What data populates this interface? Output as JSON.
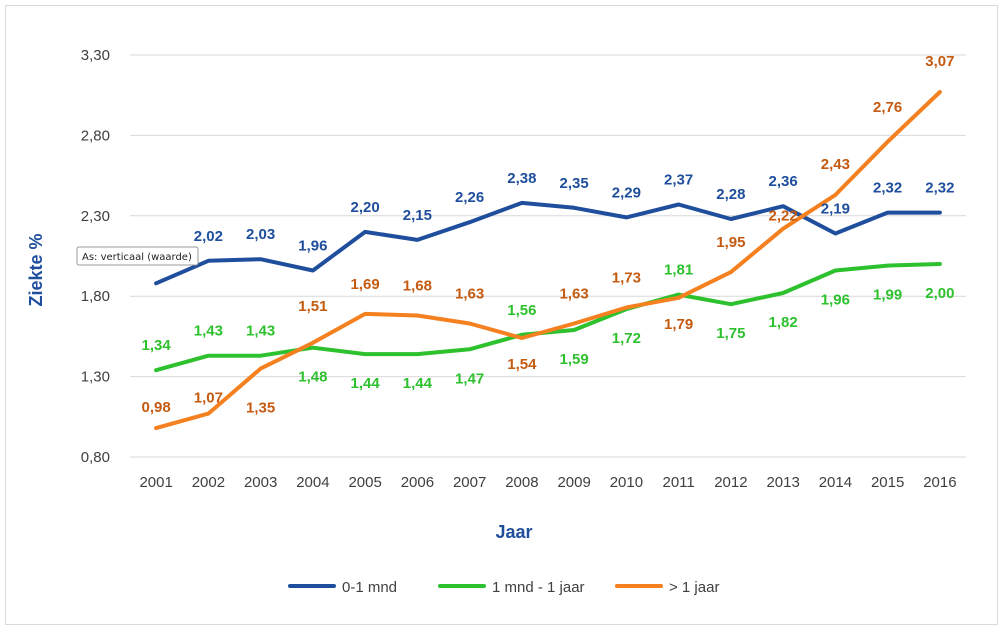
{
  "chart_data": {
    "type": "line",
    "xlabel": "Jaar",
    "ylabel": "Ziekte %",
    "ylim": [
      0.8,
      3.3
    ],
    "yticks": [
      "0,80",
      "1,30",
      "1,80",
      "2,30",
      "2,80",
      "3,30"
    ],
    "ytick_values": [
      0.8,
      1.3,
      1.8,
      2.3,
      2.8,
      3.3
    ],
    "categories": [
      "2001",
      "2002",
      "2003",
      "2004",
      "2005",
      "2006",
      "2007",
      "2008",
      "2009",
      "2010",
      "2011",
      "2012",
      "2013",
      "2014",
      "2015",
      "2016"
    ],
    "series": [
      {
        "name": "0-1 mnd",
        "color": "#1f4e9c",
        "values": [
          1.88,
          2.02,
          2.03,
          1.96,
          2.2,
          2.15,
          2.26,
          2.38,
          2.35,
          2.29,
          2.37,
          2.28,
          2.36,
          2.19,
          2.32,
          2.32
        ],
        "labels": [
          "",
          "2,02",
          "2,03",
          "1,96",
          "2,20",
          "2,15",
          "2,26",
          "2,38",
          "2,35",
          "2,29",
          "2,37",
          "2,28",
          "2,36",
          "2,19",
          "2,32",
          "2,32"
        ]
      },
      {
        "name": "1 mnd - 1 jaar",
        "color": "#2ec12e",
        "values": [
          1.34,
          1.43,
          1.43,
          1.48,
          1.44,
          1.44,
          1.47,
          1.56,
          1.59,
          1.72,
          1.81,
          1.75,
          1.82,
          1.96,
          1.99,
          2.0
        ],
        "labels": [
          "1,34",
          "1,43",
          "1,43",
          "1,48",
          "1,44",
          "1,44",
          "1,47",
          "1,56",
          "1,59",
          "1,72",
          "1,81",
          "1,75",
          "1,82",
          "1,96",
          "1,99",
          "2,00"
        ]
      },
      {
        "name": "> 1 jaar",
        "color": "#f5801f",
        "label_color": "#c55a11",
        "values": [
          0.98,
          1.07,
          1.35,
          1.51,
          1.69,
          1.68,
          1.63,
          1.54,
          1.63,
          1.73,
          1.79,
          1.95,
          2.22,
          2.43,
          2.76,
          3.07
        ],
        "labels": [
          "0,98",
          "1,07",
          "1,35",
          "1,51",
          "1,69",
          "1,68",
          "1,63",
          "1,54",
          "1,63",
          "1,73",
          "1,79",
          "1,95",
          "2,22",
          "2,43",
          "2,76",
          "3,07"
        ]
      }
    ],
    "grid": true,
    "legend": "bottom"
  },
  "tooltip": {
    "text": "As: verticaal (waarde)"
  }
}
